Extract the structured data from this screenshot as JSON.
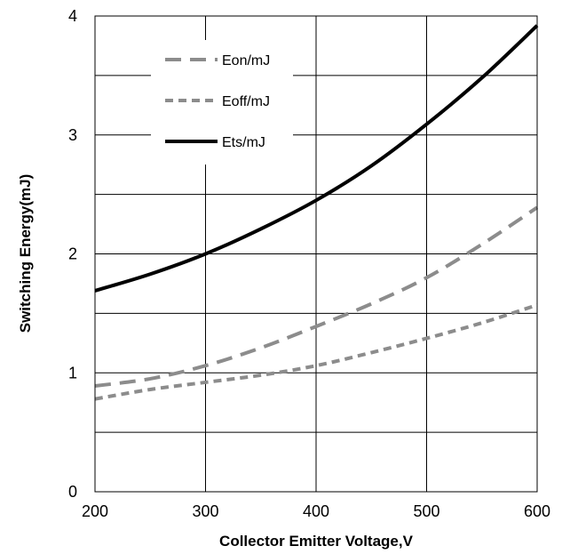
{
  "chart_data": {
    "type": "line",
    "title": "",
    "xlabel": "Collector Emitter Voltage,V",
    "ylabel": "Switching Energy(mJ)",
    "xlim": [
      200,
      600
    ],
    "ylim": [
      0,
      4
    ],
    "xticks": [
      200,
      300,
      400,
      500,
      600
    ],
    "yticks": [
      0,
      1,
      2,
      3,
      4
    ],
    "xtick_labels": [
      "200",
      "300",
      "400",
      "500",
      "600"
    ],
    "ytick_labels": [
      "0",
      "1",
      "2",
      "3",
      "4"
    ],
    "grid": true,
    "legend_position": "top-left",
    "series": [
      {
        "name": "Eon/mJ",
        "style": "long-dash",
        "color": "#8c8c8c",
        "x": [
          200,
          250,
          300,
          350,
          400,
          450,
          500,
          550,
          600
        ],
        "y": [
          0.89,
          0.95,
          1.06,
          1.21,
          1.39,
          1.58,
          1.8,
          2.08,
          2.39
        ]
      },
      {
        "name": "Eoff/mJ",
        "style": "short-dash",
        "color": "#8c8c8c",
        "x": [
          200,
          250,
          300,
          350,
          400,
          450,
          500,
          550,
          600
        ],
        "y": [
          0.78,
          0.86,
          0.92,
          0.98,
          1.06,
          1.17,
          1.29,
          1.42,
          1.57
        ]
      },
      {
        "name": "Ets/mJ",
        "style": "solid",
        "color": "#000000",
        "x": [
          200,
          250,
          300,
          350,
          400,
          450,
          500,
          550,
          600
        ],
        "y": [
          1.69,
          1.83,
          2.0,
          2.21,
          2.45,
          2.74,
          3.09,
          3.48,
          3.92
        ]
      }
    ]
  }
}
